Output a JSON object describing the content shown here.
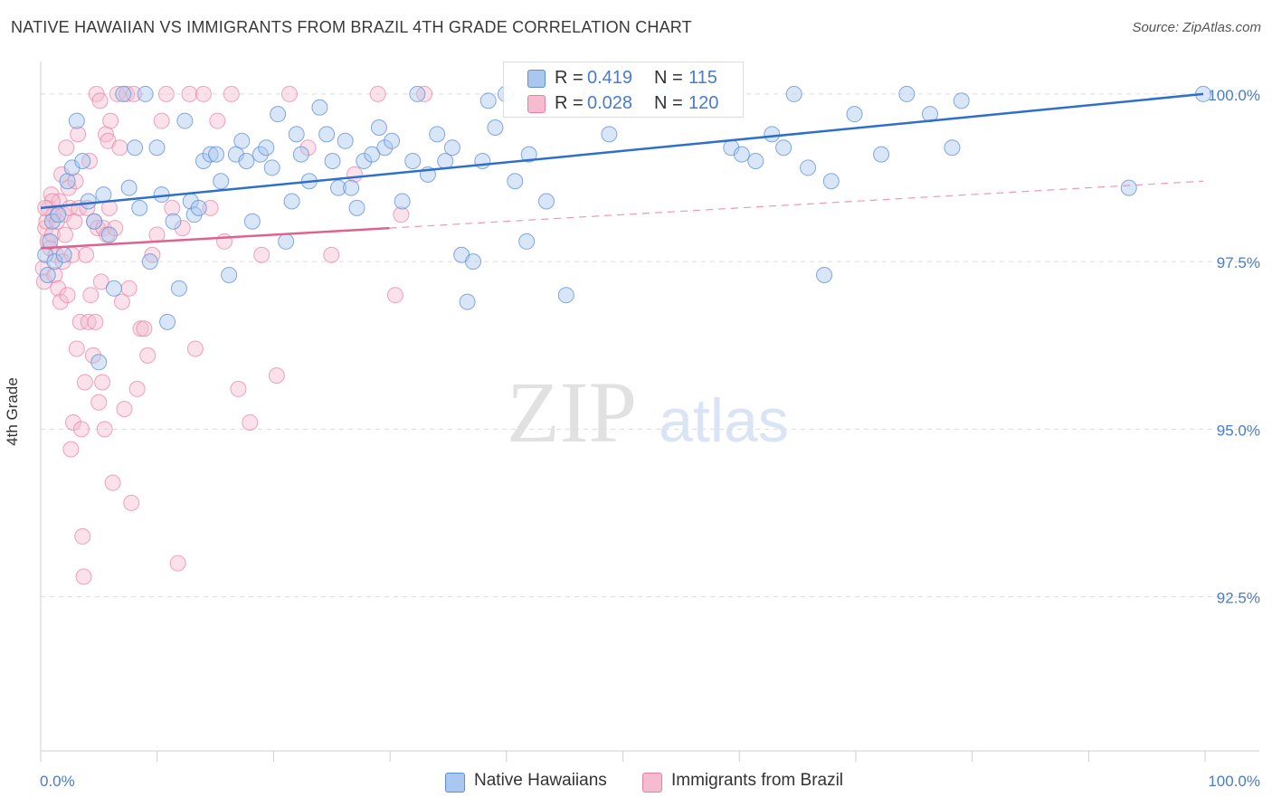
{
  "header": {
    "title": "NATIVE HAWAIIAN VS IMMIGRANTS FROM BRAZIL 4TH GRADE CORRELATION CHART",
    "source": "Source: ZipAtlas.com"
  },
  "watermark": {
    "zip": "ZIP",
    "atlas": "atlas"
  },
  "stats": {
    "series1": {
      "r_label": "R =",
      "r": "0.419",
      "n_label": "N =",
      "n": "115"
    },
    "series2": {
      "r_label": "R =",
      "r": "0.028",
      "n_label": "N =",
      "n": "120"
    }
  },
  "colors": {
    "series1": "#5b8fd6",
    "series1_fill": "#aac8ef",
    "series2": "#e87fa2",
    "series2_fill": "#f5bcd0",
    "tick_label": "#4a7cc9",
    "grid": "#dcdcdc"
  },
  "chart_data": {
    "type": "scatter",
    "title": "NATIVE HAWAIIAN VS IMMIGRANTS FROM BRAZIL 4TH GRADE CORRELATION CHART",
    "xlabel": "",
    "ylabel": "4th Grade",
    "xlim": [
      0,
      100
    ],
    "ylim": [
      90.2,
      100.35
    ],
    "x_tick_labels": [
      "0.0%",
      "100.0%"
    ],
    "y_ticks": [
      92.5,
      95.0,
      97.5,
      100.0
    ],
    "y_tick_labels": [
      "92.5%",
      "95.0%",
      "97.5%",
      "100.0%"
    ],
    "grid": true,
    "legend_position": "bottom-center",
    "series": [
      {
        "name": "Native Hawaiians",
        "r": 0.419,
        "n": 115,
        "trend": {
          "x": [
            0,
            100
          ],
          "y": [
            98.3,
            100.0
          ],
          "style": "solid"
        },
        "points": [
          [
            0.4,
            97.6
          ],
          [
            0.6,
            97.3
          ],
          [
            0.8,
            97.8
          ],
          [
            1.0,
            98.1
          ],
          [
            1.2,
            97.5
          ],
          [
            1.5,
            98.2
          ],
          [
            2.0,
            97.6
          ],
          [
            2.3,
            98.7
          ],
          [
            2.7,
            98.9
          ],
          [
            3.1,
            99.6
          ],
          [
            3.6,
            99.0
          ],
          [
            4.1,
            98.4
          ],
          [
            4.6,
            98.1
          ],
          [
            5.0,
            96.0
          ],
          [
            5.4,
            98.5
          ],
          [
            5.9,
            97.9
          ],
          [
            6.3,
            97.1
          ],
          [
            7.1,
            100.0
          ],
          [
            7.6,
            98.6
          ],
          [
            8.1,
            99.2
          ],
          [
            8.5,
            98.3
          ],
          [
            9.0,
            100.0
          ],
          [
            9.4,
            97.5
          ],
          [
            10.0,
            99.2
          ],
          [
            10.4,
            98.5
          ],
          [
            10.9,
            96.6
          ],
          [
            11.4,
            98.1
          ],
          [
            11.9,
            97.1
          ],
          [
            12.4,
            99.6
          ],
          [
            12.9,
            98.4
          ],
          [
            13.2,
            98.2
          ],
          [
            13.6,
            98.3
          ],
          [
            14.0,
            99.0
          ],
          [
            14.6,
            99.1
          ],
          [
            15.1,
            99.1
          ],
          [
            15.5,
            98.7
          ],
          [
            16.2,
            97.3
          ],
          [
            16.8,
            99.1
          ],
          [
            17.3,
            99.3
          ],
          [
            17.7,
            99.0
          ],
          [
            18.2,
            98.1
          ],
          [
            18.9,
            99.1
          ],
          [
            19.4,
            99.2
          ],
          [
            19.9,
            98.9
          ],
          [
            20.4,
            99.7
          ],
          [
            21.1,
            97.8
          ],
          [
            21.6,
            98.4
          ],
          [
            22.0,
            99.4
          ],
          [
            22.4,
            99.1
          ],
          [
            23.1,
            98.7
          ],
          [
            24.0,
            99.8
          ],
          [
            24.6,
            99.4
          ],
          [
            25.1,
            99.0
          ],
          [
            25.6,
            98.6
          ],
          [
            26.2,
            99.3
          ],
          [
            26.7,
            98.6
          ],
          [
            27.2,
            98.3
          ],
          [
            27.8,
            99.0
          ],
          [
            28.5,
            99.1
          ],
          [
            29.1,
            99.5
          ],
          [
            29.6,
            99.2
          ],
          [
            30.2,
            99.3
          ],
          [
            31.1,
            98.4
          ],
          [
            32.0,
            99.0
          ],
          [
            32.4,
            100.0
          ],
          [
            33.3,
            98.8
          ],
          [
            34.1,
            99.4
          ],
          [
            34.8,
            99.0
          ],
          [
            35.4,
            99.2
          ],
          [
            36.2,
            97.6
          ],
          [
            36.7,
            96.9
          ],
          [
            37.2,
            97.5
          ],
          [
            38.0,
            99.0
          ],
          [
            38.5,
            99.9
          ],
          [
            39.1,
            99.5
          ],
          [
            40.0,
            100.0
          ],
          [
            40.8,
            98.7
          ],
          [
            41.8,
            97.8
          ],
          [
            42.0,
            99.1
          ],
          [
            43.5,
            98.4
          ],
          [
            45.2,
            97.0
          ],
          [
            47.3,
            100.0
          ],
          [
            48.9,
            99.4
          ],
          [
            50.1,
            99.9
          ],
          [
            53.6,
            100.0
          ],
          [
            56.7,
            100.0
          ],
          [
            59.4,
            99.2
          ],
          [
            60.3,
            99.1
          ],
          [
            61.5,
            99.0
          ],
          [
            62.9,
            99.4
          ],
          [
            63.9,
            99.2
          ],
          [
            64.8,
            100.0
          ],
          [
            66.0,
            98.9
          ],
          [
            67.4,
            97.3
          ],
          [
            68.0,
            98.7
          ],
          [
            70.0,
            99.7
          ],
          [
            72.3,
            99.1
          ],
          [
            74.5,
            100.0
          ],
          [
            76.5,
            99.7
          ],
          [
            78.4,
            99.2
          ],
          [
            79.2,
            99.9
          ],
          [
            93.6,
            98.6
          ],
          [
            100.0,
            100.0
          ]
        ]
      },
      {
        "name": "Immigrants from Brazil",
        "r": 0.028,
        "n": 120,
        "trend": {
          "x": [
            0,
            30
          ],
          "y": [
            97.7,
            98.0
          ],
          "style": "solid",
          "extension": {
            "x": [
              30,
              100
            ],
            "y": [
              98.0,
              98.7
            ],
            "style": "dashed"
          }
        },
        "points": [
          [
            0.2,
            97.4
          ],
          [
            0.3,
            97.2
          ],
          [
            0.4,
            98.0
          ],
          [
            0.5,
            98.1
          ],
          [
            0.6,
            97.8
          ],
          [
            0.7,
            98.3
          ],
          [
            0.8,
            97.7
          ],
          [
            0.9,
            98.5
          ],
          [
            1.0,
            97.9
          ],
          [
            1.1,
            98.2
          ],
          [
            1.2,
            97.3
          ],
          [
            1.3,
            97.6
          ],
          [
            1.4,
            98.1
          ],
          [
            1.5,
            97.1
          ],
          [
            1.6,
            98.4
          ],
          [
            1.7,
            96.9
          ],
          [
            1.8,
            98.8
          ],
          [
            1.9,
            97.5
          ],
          [
            2.0,
            98.2
          ],
          [
            2.1,
            97.9
          ],
          [
            2.2,
            99.2
          ],
          [
            2.3,
            97.0
          ],
          [
            2.4,
            98.6
          ],
          [
            2.5,
            98.3
          ],
          [
            2.6,
            94.7
          ],
          [
            2.7,
            97.6
          ],
          [
            2.8,
            95.1
          ],
          [
            2.9,
            98.1
          ],
          [
            3.0,
            98.7
          ],
          [
            3.1,
            96.2
          ],
          [
            3.2,
            99.4
          ],
          [
            3.3,
            98.3
          ],
          [
            3.4,
            96.6
          ],
          [
            3.5,
            95.0
          ],
          [
            3.6,
            93.4
          ],
          [
            3.7,
            92.8
          ],
          [
            3.8,
            95.7
          ],
          [
            3.9,
            97.6
          ],
          [
            4.0,
            98.3
          ],
          [
            4.1,
            96.6
          ],
          [
            4.2,
            99.0
          ],
          [
            4.3,
            97.0
          ],
          [
            4.5,
            96.1
          ],
          [
            4.6,
            98.1
          ],
          [
            4.7,
            96.6
          ],
          [
            4.8,
            100.0
          ],
          [
            4.9,
            98.0
          ],
          [
            5.0,
            95.4
          ],
          [
            5.1,
            99.9
          ],
          [
            5.2,
            97.2
          ],
          [
            5.3,
            95.7
          ],
          [
            5.4,
            98.0
          ],
          [
            5.5,
            95.0
          ],
          [
            5.6,
            99.4
          ],
          [
            5.7,
            97.9
          ],
          [
            5.8,
            99.3
          ],
          [
            5.9,
            98.3
          ],
          [
            6.0,
            99.6
          ],
          [
            6.2,
            94.2
          ],
          [
            6.4,
            98.0
          ],
          [
            6.6,
            100.0
          ],
          [
            6.8,
            99.2
          ],
          [
            7.0,
            96.9
          ],
          [
            7.2,
            95.3
          ],
          [
            7.4,
            100.0
          ],
          [
            7.6,
            97.1
          ],
          [
            7.8,
            93.9
          ],
          [
            8.0,
            100.0
          ],
          [
            8.3,
            95.6
          ],
          [
            8.6,
            96.5
          ],
          [
            8.9,
            96.5
          ],
          [
            9.2,
            96.1
          ],
          [
            9.6,
            97.6
          ],
          [
            10.0,
            97.9
          ],
          [
            10.4,
            99.6
          ],
          [
            10.8,
            100.0
          ],
          [
            11.3,
            98.3
          ],
          [
            11.8,
            93.0
          ],
          [
            12.2,
            98.0
          ],
          [
            12.8,
            100.0
          ],
          [
            13.3,
            96.2
          ],
          [
            14.0,
            100.0
          ],
          [
            14.6,
            98.3
          ],
          [
            15.2,
            99.6
          ],
          [
            15.8,
            97.8
          ],
          [
            16.4,
            100.0
          ],
          [
            17.0,
            95.6
          ],
          [
            18.0,
            95.1
          ],
          [
            19.0,
            97.6
          ],
          [
            20.3,
            95.8
          ],
          [
            21.4,
            100.0
          ],
          [
            23.0,
            99.2
          ],
          [
            25.0,
            97.6
          ],
          [
            27.0,
            98.8
          ],
          [
            29.0,
            100.0
          ],
          [
            30.5,
            97.0
          ],
          [
            31.0,
            98.2
          ],
          [
            33.0,
            100.0
          ],
          [
            1.0,
            98.4
          ],
          [
            0.4,
            98.3
          ]
        ]
      }
    ]
  },
  "legend": {
    "items": [
      {
        "label": "Native Hawaiians"
      },
      {
        "label": "Immigrants from Brazil"
      }
    ]
  }
}
